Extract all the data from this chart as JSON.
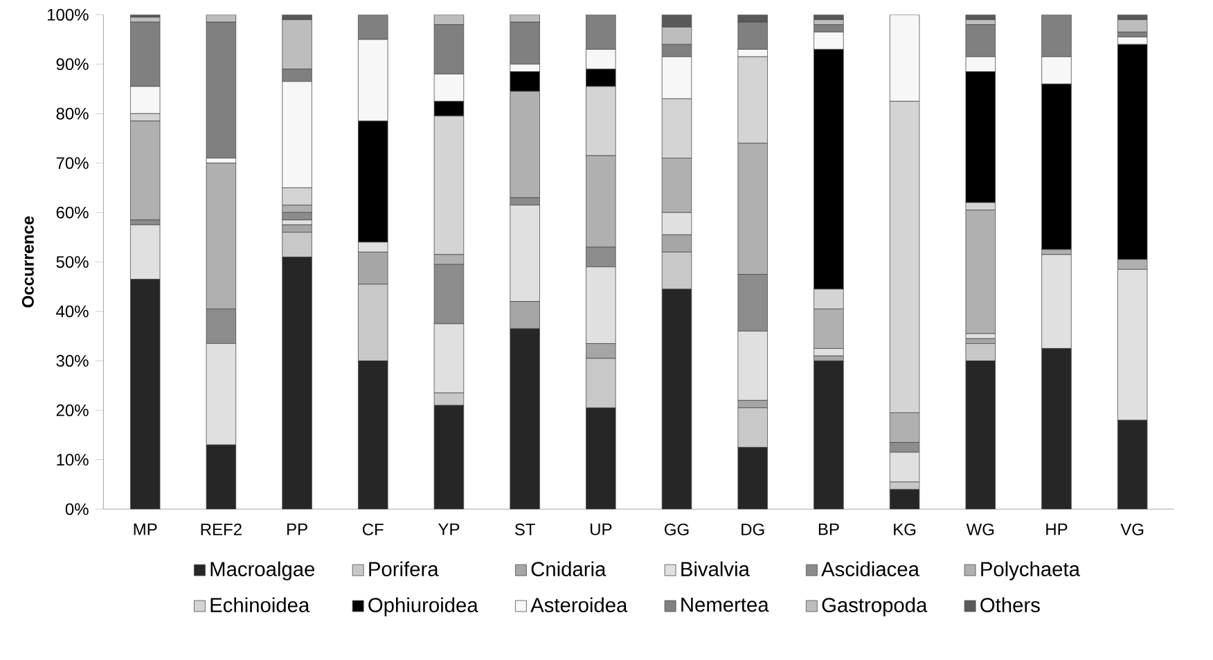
{
  "chart_data": {
    "type": "bar",
    "stacked": true,
    "ylabel": "Occurrence",
    "categories": [
      "MP",
      "REF2",
      "PP",
      "CF",
      "YP",
      "ST",
      "UP",
      "GG",
      "DG",
      "BP",
      "KG",
      "WG",
      "HP",
      "VG"
    ],
    "ylim": [
      0,
      100
    ],
    "yticks": [
      {
        "value": 0,
        "label": "0%"
      },
      {
        "value": 10,
        "label": "10%"
      },
      {
        "value": 20,
        "label": "20%"
      },
      {
        "value": 30,
        "label": "30%"
      },
      {
        "value": 40,
        "label": "40%"
      },
      {
        "value": 50,
        "label": "50%"
      },
      {
        "value": 60,
        "label": "60%"
      },
      {
        "value": 70,
        "label": "70%"
      },
      {
        "value": 80,
        "label": "80%"
      },
      {
        "value": 90,
        "label": "90%"
      },
      {
        "value": 100,
        "label": "100%"
      }
    ],
    "legend": "bottom",
    "series": [
      {
        "name": "Macroalgae",
        "color": "#262626",
        "values": [
          46.5,
          13,
          51,
          30,
          21,
          36.5,
          20.5,
          44.5,
          12.5,
          30,
          4,
          30,
          32.5,
          18
        ]
      },
      {
        "name": "Porifera",
        "color": "#c8c8c8",
        "values": [
          0,
          0,
          5,
          15.5,
          2.5,
          0,
          10,
          7.5,
          8,
          0,
          1.5,
          3.5,
          0,
          0
        ]
      },
      {
        "name": "Cnidaria",
        "color": "#a6a6a6",
        "values": [
          0,
          0,
          1.5,
          6.5,
          0,
          5.5,
          3,
          3.5,
          1.5,
          1,
          0,
          1,
          0,
          0
        ]
      },
      {
        "name": "Bivalvia",
        "color": "#e0e0e0",
        "values": [
          11,
          20.5,
          1,
          2,
          14,
          19.5,
          15.5,
          4.5,
          14,
          1.5,
          6,
          1,
          19,
          30.5
        ]
      },
      {
        "name": "Ascidiacea",
        "color": "#8c8c8c",
        "values": [
          1,
          7,
          1.5,
          0,
          12,
          1.5,
          4,
          0,
          11.5,
          0,
          2,
          0,
          0,
          0
        ]
      },
      {
        "name": "Polychaeta",
        "color": "#b0b0b0",
        "values": [
          20,
          29.5,
          1.5,
          0,
          2,
          21.5,
          18.5,
          11,
          26.5,
          8,
          6,
          25,
          1,
          2
        ]
      },
      {
        "name": "Echinoidea",
        "color": "#d4d4d4",
        "values": [
          1.5,
          0,
          3.5,
          0,
          28,
          0,
          14,
          12,
          17.5,
          4,
          63,
          1.5,
          0,
          0
        ]
      },
      {
        "name": "Ophiuroidea",
        "color": "#000000",
        "values": [
          0,
          0,
          0,
          24.5,
          3,
          4,
          3.5,
          0,
          0,
          48.5,
          0,
          26.5,
          33.5,
          43.5
        ]
      },
      {
        "name": "Asteroidea",
        "color": "#f7f7f7",
        "values": [
          5.5,
          1,
          21.5,
          16.5,
          5.5,
          1.5,
          4,
          8.5,
          1.5,
          3.5,
          17.5,
          3,
          5.5,
          1.5
        ]
      },
      {
        "name": "Nemertea",
        "color": "#808080",
        "values": [
          13,
          27.5,
          2.5,
          5,
          10,
          8.5,
          7,
          2.5,
          5.5,
          1.5,
          0,
          6.5,
          8.5,
          1
        ]
      },
      {
        "name": "Gastropoda",
        "color": "#bdbdbd",
        "values": [
          1,
          1.5,
          10,
          0,
          2,
          1.5,
          0,
          3.5,
          0,
          1,
          0,
          1,
          0,
          2.5
        ]
      },
      {
        "name": "Others",
        "color": "#595959",
        "values": [
          0.5,
          0,
          1,
          0,
          0,
          0,
          0,
          2.5,
          1.5,
          1,
          0,
          1,
          0,
          1
        ]
      }
    ]
  }
}
